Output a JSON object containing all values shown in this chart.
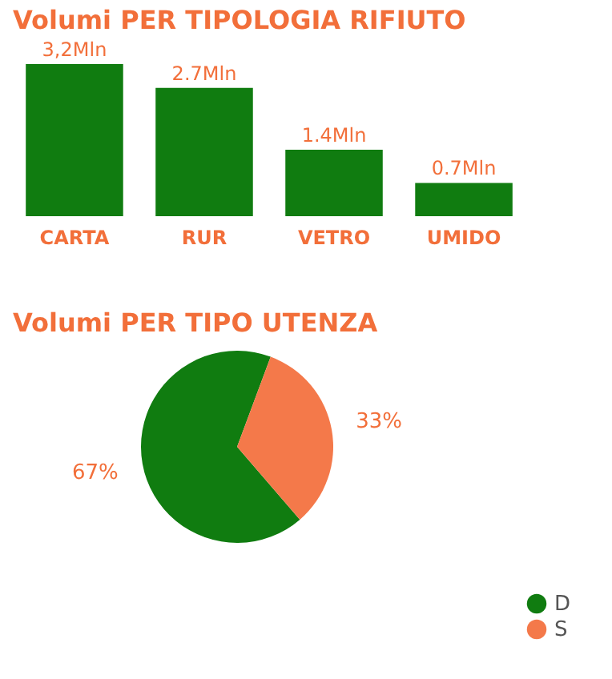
{
  "chart_data": [
    {
      "type": "bar",
      "title": "Volumi PER TIPOLOGIA RIFIUTO",
      "categories": [
        "CARTA",
        "RUR",
        "VETRO",
        "UMIDO"
      ],
      "values": [
        3.2,
        2.7,
        1.4,
        0.7
      ],
      "value_labels": [
        "3,2Mln",
        "2.7Mln",
        "1.4Mln",
        "0.7Mln"
      ],
      "color": "#107c10"
    },
    {
      "type": "pie",
      "title": "Volumi PER TIPO UTENZA",
      "categories": [
        "D",
        "S"
      ],
      "values": [
        67,
        33
      ],
      "colors": [
        "#107c10",
        "#f4794a"
      ],
      "value_labels": [
        "67%",
        "33%"
      ],
      "legend": "right"
    }
  ]
}
